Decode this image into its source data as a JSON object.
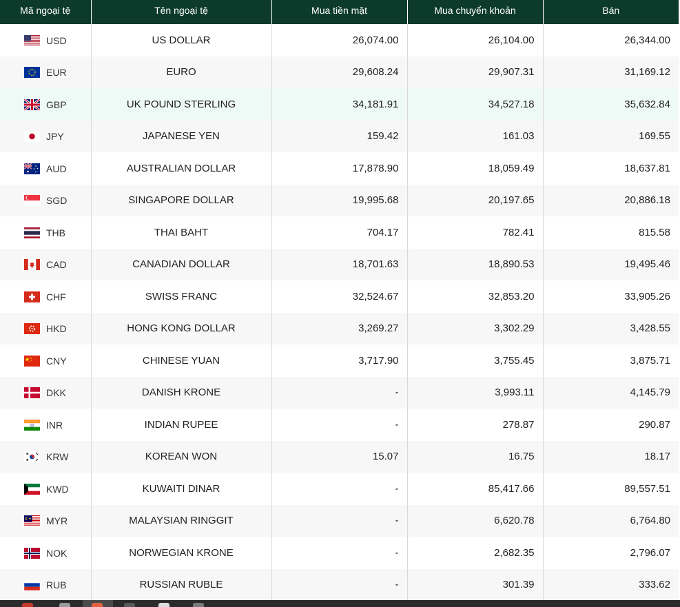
{
  "columns": {
    "code": "Mã ngoại tệ",
    "name": "Tên ngoại tệ",
    "cash_buy": "Mua tiền mặt",
    "transfer_buy": "Mua chuyển khoản",
    "sell": "Bán"
  },
  "rows": [
    {
      "code": "USD",
      "name": "US DOLLAR",
      "cash_buy": "26,074.00",
      "transfer_buy": "26,104.00",
      "sell": "26,344.00",
      "flag_icon": "us-flag-icon"
    },
    {
      "code": "EUR",
      "name": "EURO",
      "cash_buy": "29,608.24",
      "transfer_buy": "29,907.31",
      "sell": "31,169.12",
      "flag_icon": "eu-flag-icon"
    },
    {
      "code": "GBP",
      "name": "UK POUND STERLING",
      "cash_buy": "34,181.91",
      "transfer_buy": "34,527.18",
      "sell": "35,632.84",
      "flag_icon": "uk-flag-icon"
    },
    {
      "code": "JPY",
      "name": "JAPANESE YEN",
      "cash_buy": "159.42",
      "transfer_buy": "161.03",
      "sell": "169.55",
      "flag_icon": "japan-flag-icon"
    },
    {
      "code": "AUD",
      "name": "AUSTRALIAN DOLLAR",
      "cash_buy": "17,878.90",
      "transfer_buy": "18,059.49",
      "sell": "18,637.81",
      "flag_icon": "australia-flag-icon"
    },
    {
      "code": "SGD",
      "name": "SINGAPORE DOLLAR",
      "cash_buy": "19,995.68",
      "transfer_buy": "20,197.65",
      "sell": "20,886.18",
      "flag_icon": "singapore-flag-icon"
    },
    {
      "code": "THB",
      "name": "THAI BAHT",
      "cash_buy": "704.17",
      "transfer_buy": "782.41",
      "sell": "815.58",
      "flag_icon": "thailand-flag-icon"
    },
    {
      "code": "CAD",
      "name": "CANADIAN DOLLAR",
      "cash_buy": "18,701.63",
      "transfer_buy": "18,890.53",
      "sell": "19,495.46",
      "flag_icon": "canada-flag-icon"
    },
    {
      "code": "CHF",
      "name": "SWISS FRANC",
      "cash_buy": "32,524.67",
      "transfer_buy": "32,853.20",
      "sell": "33,905.26",
      "flag_icon": "switzerland-flag-icon"
    },
    {
      "code": "HKD",
      "name": "HONG KONG DOLLAR",
      "cash_buy": "3,269.27",
      "transfer_buy": "3,302.29",
      "sell": "3,428.55",
      "flag_icon": "hong-kong-flag-icon"
    },
    {
      "code": "CNY",
      "name": "CHINESE YUAN",
      "cash_buy": "3,717.90",
      "transfer_buy": "3,755.45",
      "sell": "3,875.71",
      "flag_icon": "china-flag-icon"
    },
    {
      "code": "DKK",
      "name": "DANISH KRONE",
      "cash_buy": "-",
      "transfer_buy": "3,993.11",
      "sell": "4,145.79",
      "flag_icon": "denmark-flag-icon"
    },
    {
      "code": "INR",
      "name": "INDIAN RUPEE",
      "cash_buy": "-",
      "transfer_buy": "278.87",
      "sell": "290.87",
      "flag_icon": "india-flag-icon"
    },
    {
      "code": "KRW",
      "name": "KOREAN WON",
      "cash_buy": "15.07",
      "transfer_buy": "16.75",
      "sell": "18.17",
      "flag_icon": "south-korea-flag-icon"
    },
    {
      "code": "KWD",
      "name": "KUWAITI DINAR",
      "cash_buy": "-",
      "transfer_buy": "85,417.66",
      "sell": "89,557.51",
      "flag_icon": "kuwait-flag-icon"
    },
    {
      "code": "MYR",
      "name": "MALAYSIAN RINGGIT",
      "cash_buy": "-",
      "transfer_buy": "6,620.78",
      "sell": "6,764.80",
      "flag_icon": "malaysia-flag-icon"
    },
    {
      "code": "NOK",
      "name": "NORWEGIAN KRONE",
      "cash_buy": "-",
      "transfer_buy": "2,682.35",
      "sell": "2,796.07",
      "flag_icon": "norway-flag-icon"
    },
    {
      "code": "RUB",
      "name": "RUSSIAN RUBLE",
      "cash_buy": "-",
      "transfer_buy": "301.39",
      "sell": "333.62",
      "flag_icon": "russia-flag-icon"
    }
  ],
  "colors": {
    "header_bg": "#0d3b2b",
    "header_text": "#ffffff",
    "row_alt_bg": "#f7f7f7",
    "row_highlight_bg": "#eefaf5",
    "taskbar_bg": "#2b2b2b"
  }
}
